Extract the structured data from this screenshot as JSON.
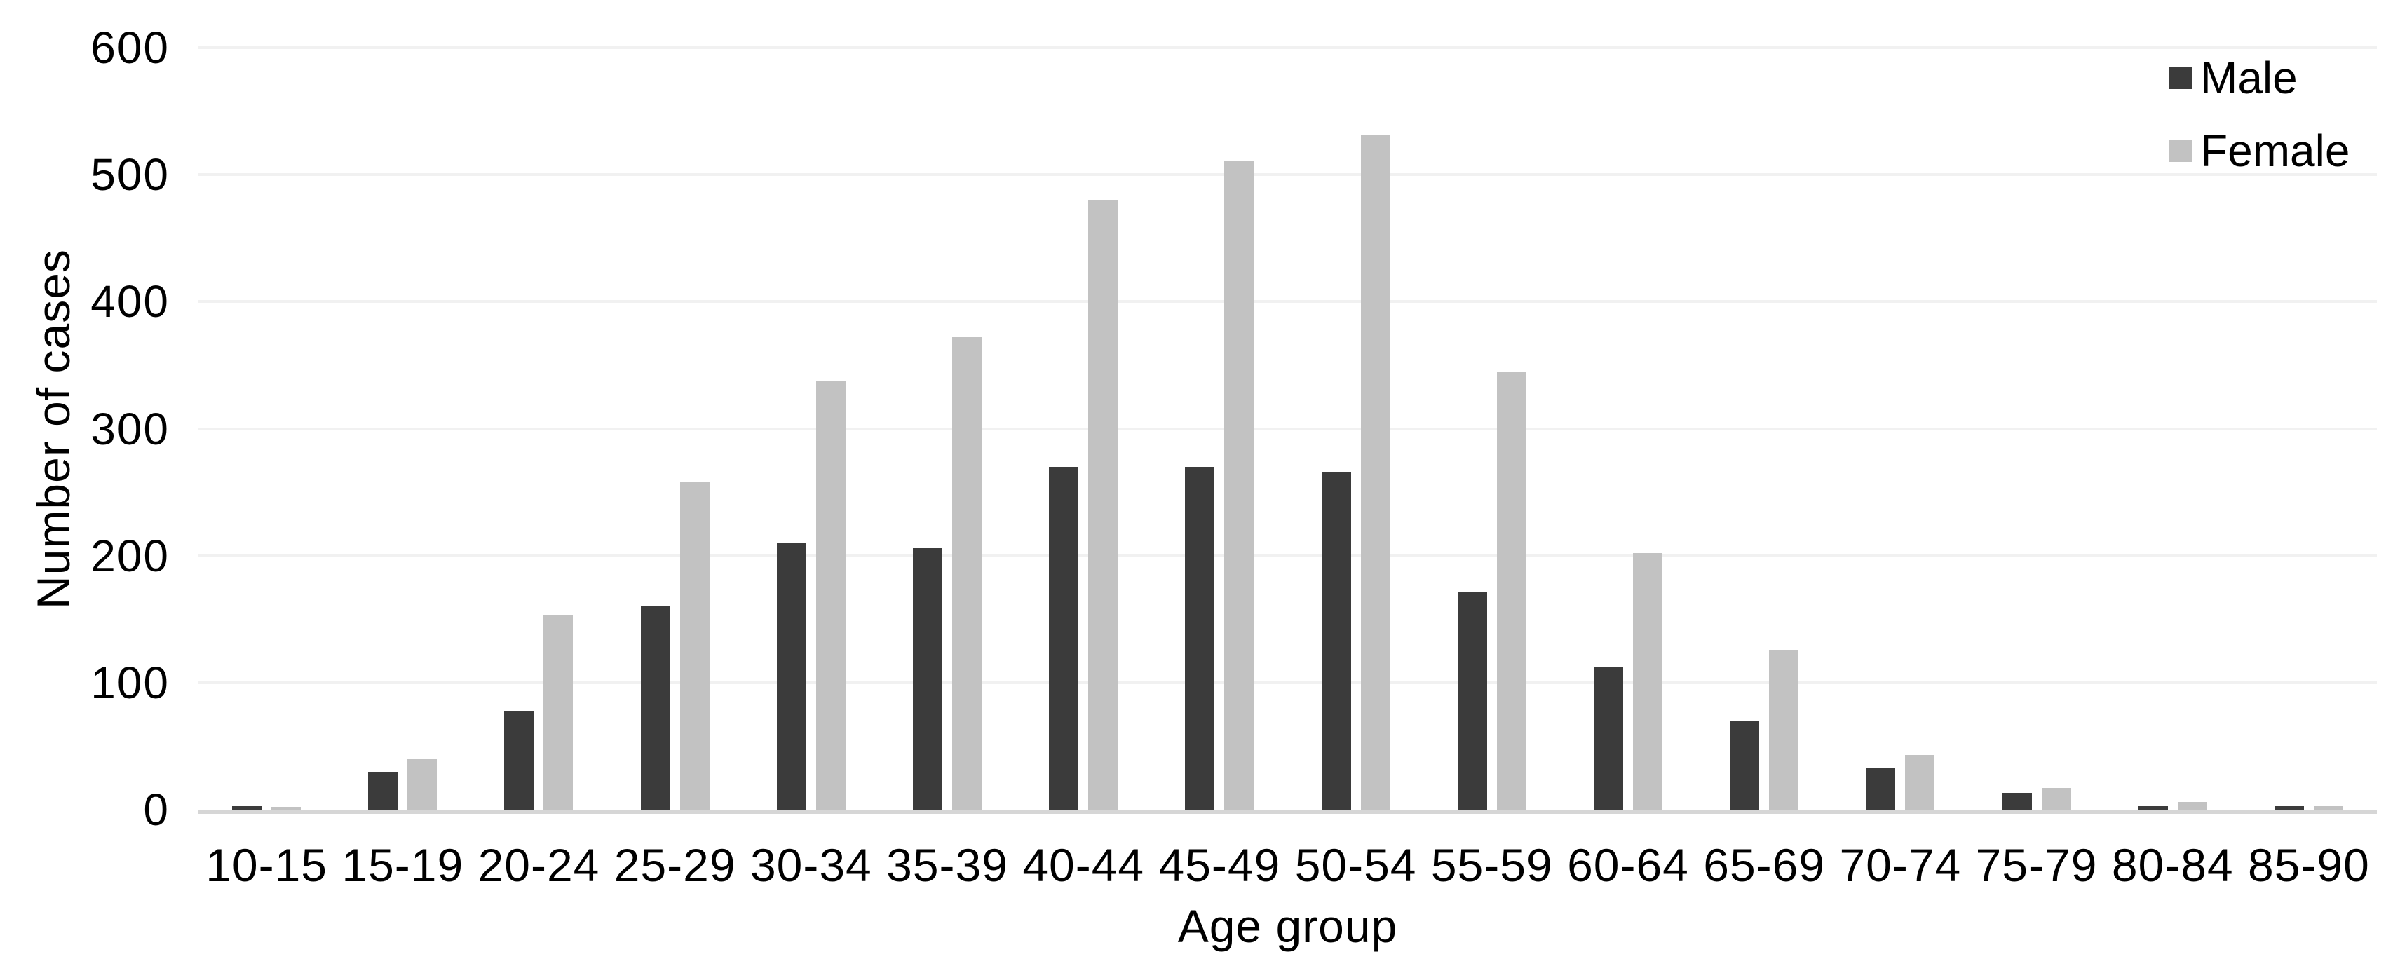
{
  "chart_data": {
    "type": "bar",
    "title": "",
    "xlabel": "Age group",
    "ylabel": "Number of cases",
    "categories": [
      "10-15",
      "15-19",
      "20-24",
      "25-29",
      "30-34",
      "35-39",
      "40-44",
      "45-49",
      "50-54",
      "55-59",
      "60-64",
      "65-69",
      "70-74",
      "75-79",
      "80-84",
      "85-90"
    ],
    "series": [
      {
        "name": "Male",
        "color": "#3B3B3B",
        "values": [
          3,
          30,
          78,
          160,
          210,
          206,
          270,
          270,
          266,
          171,
          112,
          70,
          33,
          13,
          3,
          3
        ]
      },
      {
        "name": "Female",
        "color": "#C2C2C2",
        "values": [
          2,
          40,
          153,
          258,
          337,
          372,
          480,
          511,
          531,
          345,
          202,
          126,
          43,
          17,
          6,
          3
        ]
      }
    ],
    "ylim": [
      0,
      600
    ],
    "ytick_step": 100,
    "ytick_labels": [
      "0",
      "100",
      "200",
      "300",
      "400",
      "500",
      "600"
    ],
    "grid": "horizontal",
    "gridline_color": "#F1F1F1",
    "axisline_color": "#D6D6D6",
    "background_color": "#FFFFFF",
    "text_color": "#000000",
    "legend_position": "top-right"
  }
}
